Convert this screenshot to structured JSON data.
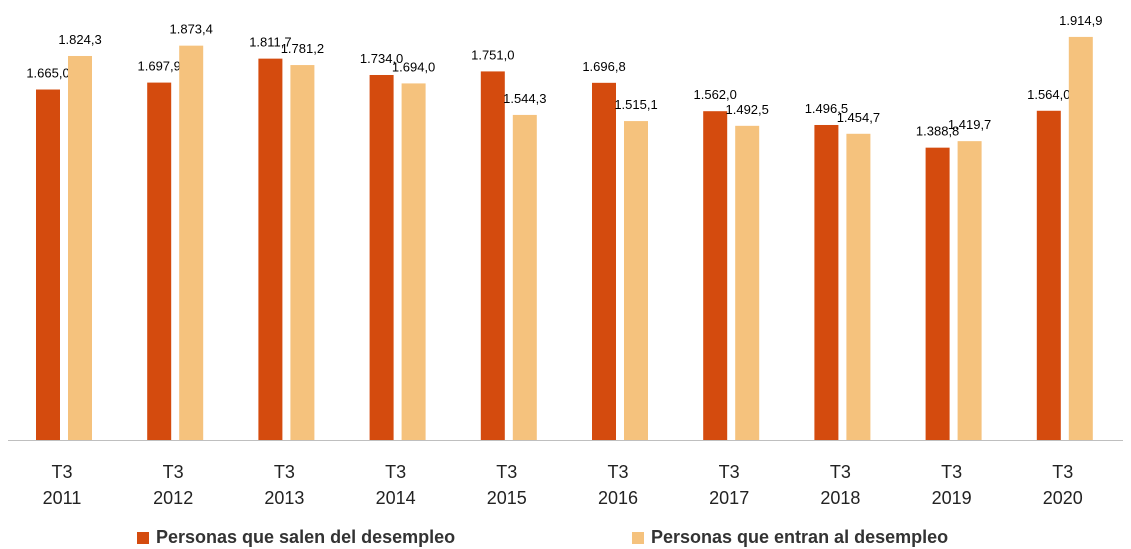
{
  "chart_data": {
    "type": "bar",
    "categories": [
      "T3 2011",
      "T3 2012",
      "T3 2013",
      "T3 2014",
      "T3 2015",
      "T3 2016",
      "T3 2017",
      "T3 2018",
      "T3 2019",
      "T3 2020"
    ],
    "series": [
      {
        "name": "Personas que salen del desempleo",
        "color": "#d44b0e",
        "values": [
          1665.0,
          1697.9,
          1811.7,
          1734.0,
          1751.0,
          1696.8,
          1562.0,
          1496.5,
          1388.8,
          1564.0
        ],
        "value_labels": [
          "1.665,0",
          "1.697,9",
          "1.811,7",
          "1.734,0",
          "1.751,0",
          "1.696,8",
          "1.562,0",
          "1.496,5",
          "1.388,8",
          "1.564,0"
        ]
      },
      {
        "name": "Personas que entran al desempleo",
        "color": "#f5c27d",
        "values": [
          1824.3,
          1873.4,
          1781.2,
          1694.0,
          1544.3,
          1515.1,
          1492.5,
          1454.7,
          1419.7,
          1914.9
        ],
        "value_labels": [
          "1.824,3",
          "1.873,4",
          "1.781,2",
          "1.694,0",
          "1.544,3",
          "1.515,1",
          "1.492,5",
          "1.454,7",
          "1.419,7",
          "1.914,9"
        ]
      }
    ]
  }
}
